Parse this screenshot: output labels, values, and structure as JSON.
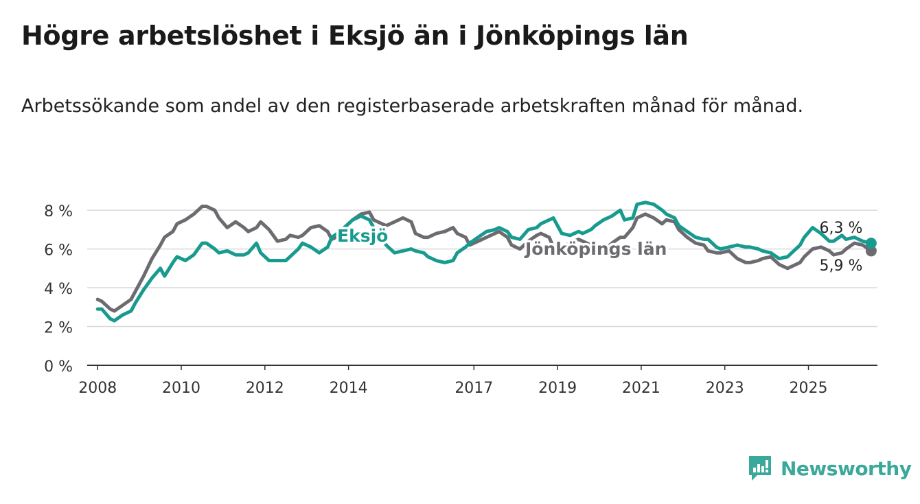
{
  "title": "Högre arbetslöshet i Eksjö än i Jönköpings län",
  "subtitle": "Arbetssökande som andel av den registerbaserade arbetskraften månad för månad.",
  "brand": {
    "name": "Newsworthy",
    "color": "#3aa89a"
  },
  "chart_data": {
    "type": "line",
    "title": "Högre arbetslöshet i Eksjö än i Jönköpings län",
    "ylim": [
      0,
      8.5
    ],
    "yticks": [
      0,
      2,
      4,
      6,
      8
    ],
    "ytick_labels": [
      "0 %",
      "2 %",
      "4 %",
      "6 %",
      "8 %"
    ],
    "xlim": [
      2007.75,
      2026.65
    ],
    "xticks": [
      2008,
      2010,
      2012,
      2014,
      2017,
      2019,
      2021,
      2023,
      2025
    ],
    "xtick_labels": [
      "2008",
      "2010",
      "2012",
      "2014",
      "2017",
      "2019",
      "2021",
      "2023",
      "2025"
    ],
    "grid": true,
    "legend": "inline labels",
    "series": [
      {
        "name": "Jönköpings län",
        "color": "#6d6b70",
        "end_label": "5,9 %",
        "points": [
          [
            2008.0,
            3.4
          ],
          [
            2008.1,
            3.3
          ],
          [
            2008.3,
            2.9
          ],
          [
            2008.4,
            2.8
          ],
          [
            2008.6,
            3.1
          ],
          [
            2008.8,
            3.4
          ],
          [
            2008.9,
            3.8
          ],
          [
            2009.1,
            4.6
          ],
          [
            2009.3,
            5.5
          ],
          [
            2009.5,
            6.2
          ],
          [
            2009.6,
            6.6
          ],
          [
            2009.8,
            6.9
          ],
          [
            2009.9,
            7.3
          ],
          [
            2010.1,
            7.5
          ],
          [
            2010.3,
            7.8
          ],
          [
            2010.5,
            8.2
          ],
          [
            2010.6,
            8.2
          ],
          [
            2010.8,
            8.0
          ],
          [
            2010.9,
            7.6
          ],
          [
            2011.1,
            7.1
          ],
          [
            2011.3,
            7.4
          ],
          [
            2011.5,
            7.1
          ],
          [
            2011.6,
            6.9
          ],
          [
            2011.8,
            7.1
          ],
          [
            2011.9,
            7.4
          ],
          [
            2012.1,
            7.0
          ],
          [
            2012.3,
            6.4
          ],
          [
            2012.5,
            6.5
          ],
          [
            2012.6,
            6.7
          ],
          [
            2012.8,
            6.6
          ],
          [
            2012.9,
            6.7
          ],
          [
            2013.1,
            7.1
          ],
          [
            2013.3,
            7.2
          ],
          [
            2013.5,
            6.9
          ],
          [
            2013.6,
            6.5
          ],
          [
            2013.8,
            6.7
          ],
          [
            2013.9,
            7.1
          ],
          [
            2014.1,
            7.5
          ],
          [
            2014.3,
            7.8
          ],
          [
            2014.5,
            7.9
          ],
          [
            2014.6,
            7.5
          ],
          [
            2014.8,
            7.3
          ],
          [
            2014.9,
            7.2
          ],
          [
            2015.1,
            7.4
          ],
          [
            2015.3,
            7.6
          ],
          [
            2015.5,
            7.4
          ],
          [
            2015.6,
            6.8
          ],
          [
            2015.8,
            6.6
          ],
          [
            2015.9,
            6.6
          ],
          [
            2016.1,
            6.8
          ],
          [
            2016.3,
            6.9
          ],
          [
            2016.5,
            7.1
          ],
          [
            2016.6,
            6.8
          ],
          [
            2016.8,
            6.6
          ],
          [
            2016.9,
            6.2
          ],
          [
            2017.1,
            6.4
          ],
          [
            2017.3,
            6.6
          ],
          [
            2017.5,
            6.8
          ],
          [
            2017.6,
            6.9
          ],
          [
            2017.8,
            6.6
          ],
          [
            2017.9,
            6.2
          ],
          [
            2018.1,
            6.0
          ],
          [
            2018.3,
            6.4
          ],
          [
            2018.5,
            6.7
          ],
          [
            2018.6,
            6.8
          ],
          [
            2018.8,
            6.6
          ],
          [
            2018.9,
            6.1
          ],
          [
            2019.1,
            6.1
          ],
          [
            2019.3,
            6.3
          ],
          [
            2019.5,
            6.5
          ],
          [
            2019.6,
            6.4
          ],
          [
            2019.8,
            6.2
          ],
          [
            2019.9,
            6.0
          ],
          [
            2020.1,
            5.9
          ],
          [
            2020.3,
            6.3
          ],
          [
            2020.5,
            6.6
          ],
          [
            2020.6,
            6.6
          ],
          [
            2020.8,
            7.1
          ],
          [
            2020.9,
            7.6
          ],
          [
            2021.1,
            7.8
          ],
          [
            2021.3,
            7.6
          ],
          [
            2021.5,
            7.3
          ],
          [
            2021.6,
            7.5
          ],
          [
            2021.8,
            7.4
          ],
          [
            2021.9,
            7.0
          ],
          [
            2022.1,
            6.6
          ],
          [
            2022.3,
            6.3
          ],
          [
            2022.5,
            6.2
          ],
          [
            2022.6,
            5.9
          ],
          [
            2022.8,
            5.8
          ],
          [
            2022.9,
            5.8
          ],
          [
            2023.1,
            5.9
          ],
          [
            2023.3,
            5.5
          ],
          [
            2023.5,
            5.3
          ],
          [
            2023.6,
            5.3
          ],
          [
            2023.8,
            5.4
          ],
          [
            2023.9,
            5.5
          ],
          [
            2024.1,
            5.6
          ],
          [
            2024.3,
            5.2
          ],
          [
            2024.5,
            5.0
          ],
          [
            2024.6,
            5.1
          ],
          [
            2024.8,
            5.3
          ],
          [
            2024.9,
            5.6
          ],
          [
            2025.1,
            6.0
          ],
          [
            2025.3,
            6.1
          ],
          [
            2025.5,
            5.9
          ],
          [
            2025.6,
            5.7
          ],
          [
            2025.8,
            5.8
          ],
          [
            2025.9,
            6.0
          ],
          [
            2026.1,
            6.3
          ],
          [
            2026.3,
            6.2
          ],
          [
            2026.5,
            5.9
          ]
        ]
      },
      {
        "name": "Eksjö",
        "color": "#179b8f",
        "end_label": "6,3 %",
        "points": [
          [
            2008.0,
            2.9
          ],
          [
            2008.1,
            2.9
          ],
          [
            2008.3,
            2.4
          ],
          [
            2008.4,
            2.3
          ],
          [
            2008.6,
            2.6
          ],
          [
            2008.8,
            2.8
          ],
          [
            2008.9,
            3.2
          ],
          [
            2009.1,
            3.9
          ],
          [
            2009.3,
            4.5
          ],
          [
            2009.5,
            5.0
          ],
          [
            2009.6,
            4.6
          ],
          [
            2009.8,
            5.3
          ],
          [
            2009.9,
            5.6
          ],
          [
            2010.1,
            5.4
          ],
          [
            2010.3,
            5.7
          ],
          [
            2010.5,
            6.3
          ],
          [
            2010.6,
            6.3
          ],
          [
            2010.8,
            6.0
          ],
          [
            2010.9,
            5.8
          ],
          [
            2011.1,
            5.9
          ],
          [
            2011.3,
            5.7
          ],
          [
            2011.5,
            5.7
          ],
          [
            2011.6,
            5.8
          ],
          [
            2011.8,
            6.3
          ],
          [
            2011.9,
            5.8
          ],
          [
            2012.1,
            5.4
          ],
          [
            2012.3,
            5.4
          ],
          [
            2012.5,
            5.4
          ],
          [
            2012.6,
            5.6
          ],
          [
            2012.8,
            6.0
          ],
          [
            2012.9,
            6.3
          ],
          [
            2013.1,
            6.1
          ],
          [
            2013.3,
            5.8
          ],
          [
            2013.5,
            6.1
          ],
          [
            2013.6,
            6.6
          ],
          [
            2013.8,
            6.9
          ],
          [
            2013.9,
            7.1
          ],
          [
            2014.1,
            7.5
          ],
          [
            2014.3,
            7.7
          ],
          [
            2014.5,
            7.5
          ],
          [
            2014.6,
            7.1
          ],
          [
            2014.8,
            6.7
          ],
          [
            2014.9,
            6.2
          ],
          [
            2015.1,
            5.8
          ],
          [
            2015.3,
            5.9
          ],
          [
            2015.5,
            6.0
          ],
          [
            2015.6,
            5.9
          ],
          [
            2015.8,
            5.8
          ],
          [
            2015.9,
            5.6
          ],
          [
            2016.1,
            5.4
          ],
          [
            2016.3,
            5.3
          ],
          [
            2016.5,
            5.4
          ],
          [
            2016.6,
            5.8
          ],
          [
            2016.8,
            6.1
          ],
          [
            2016.9,
            6.3
          ],
          [
            2017.1,
            6.6
          ],
          [
            2017.3,
            6.9
          ],
          [
            2017.5,
            7.0
          ],
          [
            2017.6,
            7.1
          ],
          [
            2017.8,
            6.9
          ],
          [
            2017.9,
            6.6
          ],
          [
            2018.1,
            6.5
          ],
          [
            2018.3,
            7.0
          ],
          [
            2018.5,
            7.1
          ],
          [
            2018.6,
            7.3
          ],
          [
            2018.8,
            7.5
          ],
          [
            2018.9,
            7.6
          ],
          [
            2019.1,
            6.8
          ],
          [
            2019.3,
            6.7
          ],
          [
            2019.5,
            6.9
          ],
          [
            2019.6,
            6.8
          ],
          [
            2019.8,
            7.0
          ],
          [
            2019.9,
            7.2
          ],
          [
            2020.1,
            7.5
          ],
          [
            2020.3,
            7.7
          ],
          [
            2020.5,
            8.0
          ],
          [
            2020.6,
            7.5
          ],
          [
            2020.8,
            7.6
          ],
          [
            2020.9,
            8.3
          ],
          [
            2021.1,
            8.4
          ],
          [
            2021.3,
            8.3
          ],
          [
            2021.5,
            8.0
          ],
          [
            2021.6,
            7.8
          ],
          [
            2021.8,
            7.6
          ],
          [
            2021.9,
            7.2
          ],
          [
            2022.1,
            6.9
          ],
          [
            2022.3,
            6.6
          ],
          [
            2022.5,
            6.5
          ],
          [
            2022.6,
            6.5
          ],
          [
            2022.8,
            6.1
          ],
          [
            2022.9,
            6.0
          ],
          [
            2023.1,
            6.1
          ],
          [
            2023.3,
            6.2
          ],
          [
            2023.5,
            6.1
          ],
          [
            2023.6,
            6.1
          ],
          [
            2023.8,
            6.0
          ],
          [
            2023.9,
            5.9
          ],
          [
            2024.1,
            5.8
          ],
          [
            2024.3,
            5.5
          ],
          [
            2024.5,
            5.6
          ],
          [
            2024.6,
            5.8
          ],
          [
            2024.8,
            6.2
          ],
          [
            2024.9,
            6.6
          ],
          [
            2025.1,
            7.1
          ],
          [
            2025.3,
            6.8
          ],
          [
            2025.5,
            6.4
          ],
          [
            2025.6,
            6.4
          ],
          [
            2025.8,
            6.7
          ],
          [
            2025.9,
            6.5
          ],
          [
            2026.1,
            6.6
          ],
          [
            2026.3,
            6.4
          ],
          [
            2026.5,
            6.3
          ]
        ]
      }
    ]
  }
}
